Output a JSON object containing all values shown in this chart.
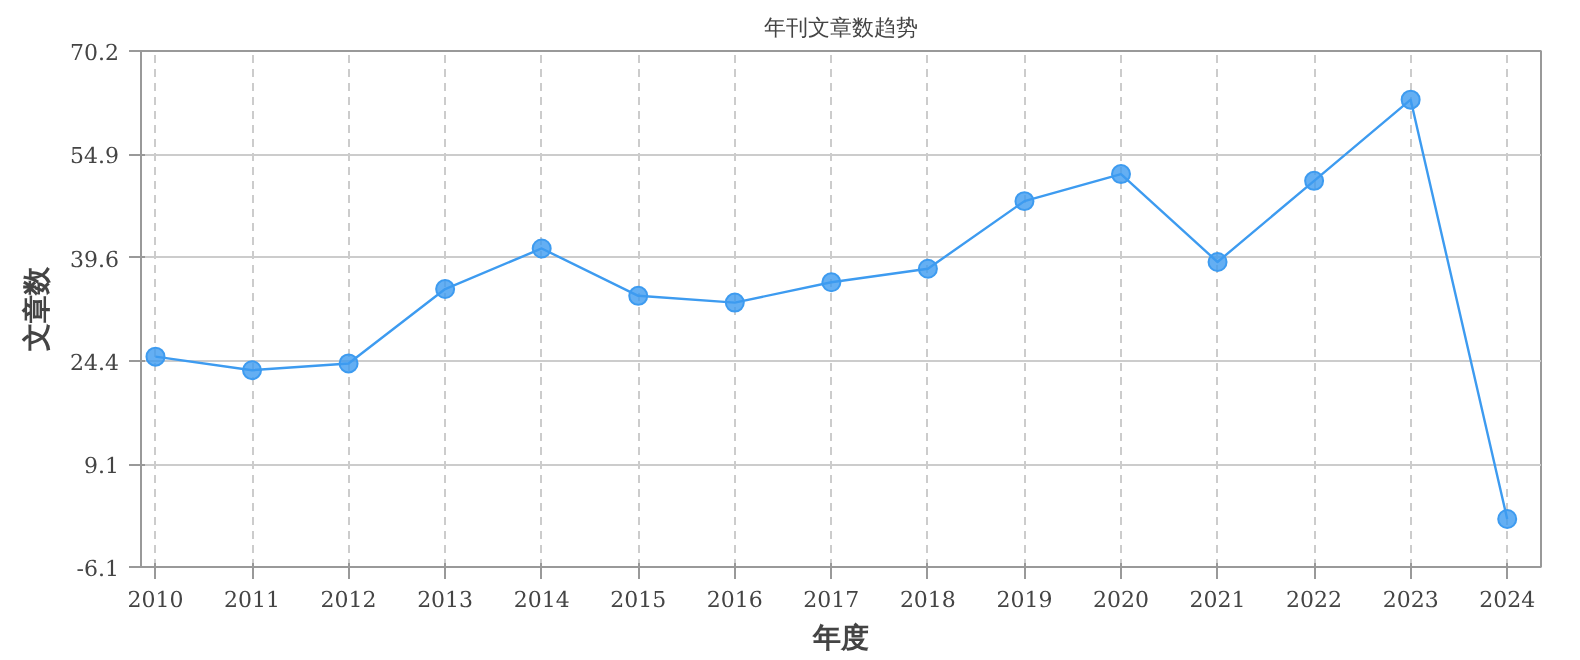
{
  "chart_data": {
    "type": "line",
    "title": "年刊文章数趋势",
    "xlabel": "年度",
    "ylabel": "文章数",
    "categories": [
      "2010",
      "2011",
      "2012",
      "2013",
      "2014",
      "2015",
      "2016",
      "2017",
      "2018",
      "2019",
      "2020",
      "2021",
      "2022",
      "2023",
      "2024"
    ],
    "series": [
      {
        "color": "#3d9bf0",
        "values": [
          25,
          23,
          24,
          35,
          41,
          34,
          33,
          36,
          38,
          48,
          52,
          39,
          51,
          63,
          1
        ]
      }
    ],
    "ylim": [
      -6.1,
      70.2
    ],
    "yticks": [
      -6.1,
      9.1,
      24.4,
      39.6,
      54.9,
      70.2
    ],
    "grid": true,
    "marker": "circle",
    "line_style": "solid"
  }
}
